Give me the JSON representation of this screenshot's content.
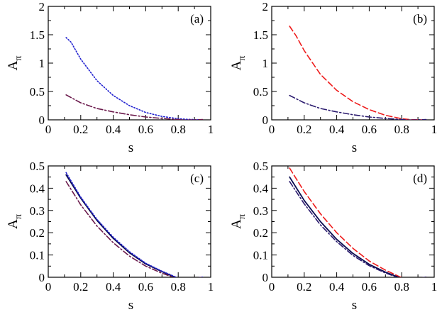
{
  "chart_data": [
    {
      "panel": "(a)",
      "type": "line",
      "xlabel": "s",
      "ylabel": "A",
      "ylabel_subscript": "π",
      "xlim": [
        0,
        1
      ],
      "ylim": [
        0,
        2
      ],
      "xticks": [
        0,
        0.2,
        0.4,
        0.6,
        0.8,
        1
      ],
      "xtick_labels": [
        "0",
        "0.2",
        "0.4",
        "0.6",
        "0.8",
        "1"
      ],
      "yticks": [
        0,
        0.5,
        1,
        1.5,
        2
      ],
      "ytick_labels": [
        "0",
        "0.5",
        "1",
        "1.5",
        "2"
      ],
      "series": [
        {
          "name": "dotted blue",
          "color": "#1f1fcf",
          "style": "dotted",
          "x": [
            0.11,
            0.14,
            0.2,
            0.3,
            0.4,
            0.5,
            0.6,
            0.7,
            0.8,
            0.85,
            0.9,
            0.95
          ],
          "y": [
            1.45,
            1.37,
            1.07,
            0.69,
            0.43,
            0.25,
            0.13,
            0.06,
            0.02,
            0.01,
            0.005,
            0.0
          ]
        },
        {
          "name": "dash-dot purple",
          "color": "#6b1a4c",
          "style": "dashdot",
          "x": [
            0.11,
            0.2,
            0.3,
            0.4,
            0.5,
            0.6,
            0.7,
            0.8,
            0.85,
            0.9,
            0.95
          ],
          "y": [
            0.44,
            0.3,
            0.2,
            0.14,
            0.09,
            0.05,
            0.025,
            0.005,
            -0.005,
            0.0,
            0.005
          ]
        }
      ]
    },
    {
      "panel": "(b)",
      "type": "line",
      "xlabel": "s",
      "ylabel": "A",
      "ylabel_subscript": "π",
      "xlim": [
        0,
        1
      ],
      "ylim": [
        0,
        2
      ],
      "xticks": [
        0,
        0.2,
        0.4,
        0.6,
        0.8,
        1
      ],
      "xtick_labels": [
        "0",
        "0.2",
        "0.4",
        "0.6",
        "0.8",
        "1"
      ],
      "yticks": [
        0,
        0.5,
        1,
        1.5,
        2
      ],
      "ytick_labels": [
        "0",
        "0.5",
        "1",
        "1.5",
        "2"
      ],
      "series": [
        {
          "name": "dashed red",
          "color": "#ee1c1c",
          "style": "dashed",
          "x": [
            0.11,
            0.15,
            0.2,
            0.3,
            0.4,
            0.5,
            0.6,
            0.7,
            0.8,
            0.85,
            0.9,
            0.95
          ],
          "y": [
            1.65,
            1.48,
            1.22,
            0.8,
            0.52,
            0.32,
            0.18,
            0.08,
            0.02,
            0.005,
            0.0,
            0.0
          ]
        },
        {
          "name": "dash-dot navy",
          "color": "#2a1a6e",
          "style": "dashdot",
          "x": [
            0.11,
            0.2,
            0.3,
            0.4,
            0.5,
            0.6,
            0.7,
            0.8,
            0.85,
            0.9,
            0.95
          ],
          "y": [
            0.43,
            0.3,
            0.2,
            0.14,
            0.09,
            0.05,
            0.025,
            0.005,
            -0.005,
            0.0,
            0.005
          ]
        }
      ]
    },
    {
      "panel": "(c)",
      "type": "line",
      "xlabel": "s",
      "ylabel": "A",
      "ylabel_subscript": "π",
      "xlim": [
        0,
        1
      ],
      "ylim": [
        0,
        0.5
      ],
      "xticks": [
        0,
        0.2,
        0.4,
        0.6,
        0.8,
        1
      ],
      "xtick_labels": [
        "0",
        "0.2",
        "0.4",
        "0.6",
        "0.8",
        "1"
      ],
      "yticks": [
        0,
        0.1,
        0.2,
        0.3,
        0.4,
        0.5
      ],
      "ytick_labels": [
        "0",
        "0.1",
        "0.2",
        "0.3",
        "0.4",
        "0.5"
      ],
      "series": [
        {
          "name": "solid navy",
          "color": "#0b0b4f",
          "style": "solid",
          "x": [
            0.11,
            0.2,
            0.3,
            0.4,
            0.5,
            0.6,
            0.7,
            0.75,
            0.8,
            0.85,
            0.9,
            0.95
          ],
          "y": [
            0.46,
            0.355,
            0.255,
            0.175,
            0.11,
            0.06,
            0.025,
            0.01,
            -0.005,
            -0.008,
            -0.005,
            0.0
          ]
        },
        {
          "name": "dotted blue",
          "color": "#1f1fcf",
          "style": "dotted",
          "x": [
            0.11,
            0.2,
            0.3,
            0.4,
            0.5,
            0.6,
            0.7,
            0.75,
            0.8,
            0.85,
            0.9,
            0.95
          ],
          "y": [
            0.47,
            0.36,
            0.26,
            0.18,
            0.115,
            0.063,
            0.027,
            0.012,
            -0.004,
            -0.008,
            -0.005,
            0.0
          ]
        },
        {
          "name": "dash-dot purple",
          "color": "#6b1a4c",
          "style": "dashdot",
          "x": [
            0.11,
            0.2,
            0.3,
            0.4,
            0.5,
            0.6,
            0.7,
            0.75,
            0.8,
            0.85,
            0.9,
            0.95
          ],
          "y": [
            0.43,
            0.325,
            0.23,
            0.155,
            0.095,
            0.05,
            0.018,
            0.005,
            -0.008,
            -0.01,
            -0.005,
            0.0
          ]
        }
      ]
    },
    {
      "panel": "(d)",
      "type": "line",
      "xlabel": "s",
      "ylabel": "A",
      "ylabel_subscript": "π",
      "xlim": [
        0,
        1
      ],
      "ylim": [
        0,
        0.5
      ],
      "xticks": [
        0,
        0.2,
        0.4,
        0.6,
        0.8,
        1
      ],
      "xtick_labels": [
        "0",
        "0.2",
        "0.4",
        "0.6",
        "0.8",
        "1"
      ],
      "yticks": [
        0,
        0.1,
        0.2,
        0.3,
        0.4,
        0.5
      ],
      "ytick_labels": [
        "0",
        "0.1",
        "0.2",
        "0.3",
        "0.4",
        "0.5"
      ],
      "series": [
        {
          "name": "dashed red",
          "color": "#ee1c1c",
          "style": "dashed",
          "x": [
            0.11,
            0.2,
            0.3,
            0.4,
            0.5,
            0.6,
            0.7,
            0.75,
            0.8,
            0.85,
            0.9,
            0.95
          ],
          "y": [
            0.49,
            0.385,
            0.285,
            0.2,
            0.13,
            0.073,
            0.032,
            0.015,
            -0.002,
            -0.007,
            -0.005,
            0.0
          ]
        },
        {
          "name": "solid navy",
          "color": "#0b0b4f",
          "style": "solid",
          "x": [
            0.11,
            0.2,
            0.3,
            0.4,
            0.5,
            0.6,
            0.7,
            0.75,
            0.8,
            0.85,
            0.9,
            0.95
          ],
          "y": [
            0.45,
            0.345,
            0.25,
            0.17,
            0.107,
            0.058,
            0.023,
            0.009,
            -0.006,
            -0.008,
            -0.005,
            0.0
          ]
        },
        {
          "name": "dash-dot navy",
          "color": "#2a1a6e",
          "style": "dashdot",
          "x": [
            0.11,
            0.2,
            0.3,
            0.4,
            0.5,
            0.6,
            0.7,
            0.75,
            0.8,
            0.85,
            0.9,
            0.95
          ],
          "y": [
            0.43,
            0.33,
            0.235,
            0.16,
            0.098,
            0.052,
            0.019,
            0.006,
            -0.008,
            -0.01,
            -0.005,
            0.0
          ]
        }
      ]
    }
  ]
}
